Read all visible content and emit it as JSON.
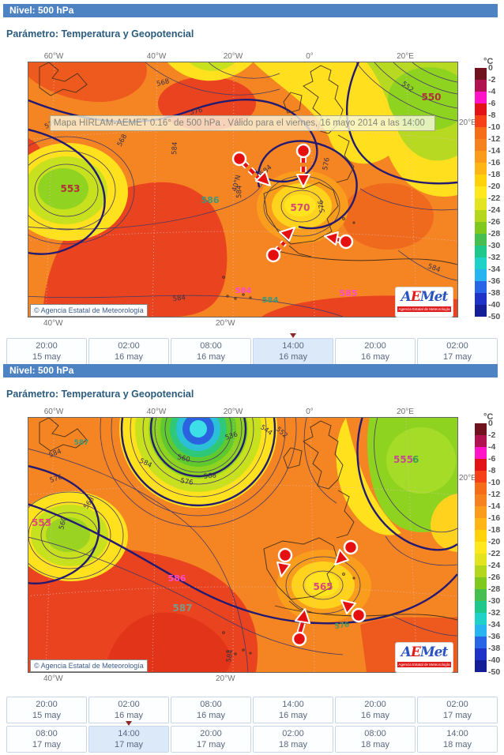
{
  "colorbar": {
    "title": "°C",
    "ticks": [
      "0",
      "-2",
      "-4",
      "-6",
      "-8",
      "-10",
      "-12",
      "-14",
      "-16",
      "-18",
      "-20",
      "-22",
      "-24",
      "-26",
      "-28",
      "-30",
      "-32",
      "-34",
      "-36",
      "-38",
      "-40",
      "-50"
    ],
    "colors": [
      "#70131f",
      "#b0134f",
      "#ff14c8",
      "#e31217",
      "#f54018",
      "#f56d18",
      "#f5821e",
      "#fa9b1a",
      "#ffb514",
      "#ffd20a",
      "#ffe81e",
      "#e1e41e",
      "#b4d71e",
      "#7fc81e",
      "#46be50",
      "#1ec88c",
      "#1ed2c8",
      "#28b4f0",
      "#2864e6",
      "#1e32c8",
      "#141e96"
    ]
  },
  "panel1": {
    "header": "Nivel: 500 hPa",
    "param": "Parámetro: Temperatura y Geopotencial",
    "tooltip": "Mapa HIRLAM-AEMET 0.16° de 500 hPa . Válido para el viernes, 16 mayo 2014 a las 14:00",
    "copyright": "© Agencia Estatal de Meteorología",
    "logo": {
      "a": "A",
      "e": "E",
      "met": "Met",
      "sub": "Agencia Estatal de Meteorología"
    },
    "axis": {
      "top": [
        "60°W",
        "40°W",
        "20°W",
        "0°",
        "20°E"
      ],
      "bottom": [
        "40°W",
        "20°W"
      ],
      "right": "20°E"
    },
    "map_labels": {
      "low_west": "553",
      "low_north": "550",
      "low_center": "570",
      "high_center": "586",
      "high_east": "585",
      "mag_s": "584",
      "teal_s": "584",
      "lat": "40°N",
      "c552": "552",
      "c568a": "568",
      "c568b": "568",
      "c576a": "576",
      "c576b": "576",
      "c576c": "576",
      "c576d": "576",
      "c584a": "584",
      "c584b": "584",
      "c584c": "584",
      "c584d": "584",
      "c584e": "584"
    },
    "timebar": {
      "rows": [
        [
          {
            "time": "20:00",
            "date": "15 may"
          },
          {
            "time": "02:00",
            "date": "16 may"
          },
          {
            "time": "08:00",
            "date": "16 may"
          },
          {
            "time": "14:00",
            "date": "16 may"
          },
          {
            "time": "20:00",
            "date": "16 may"
          },
          {
            "time": "02:00",
            "date": "17 may"
          }
        ]
      ]
    }
  },
  "panel2": {
    "header": "Nivel: 500 hPa",
    "param": "Parámetro: Temperatura y Geopotencial",
    "copyright": "© Agencia Estatal de Meteorología",
    "logo": {
      "a": "A",
      "e": "E",
      "met": "Met",
      "sub": "Agencia Estatal de Meteorología"
    },
    "axis": {
      "top": [
        "60°W",
        "40°W",
        "20°W",
        "0°",
        "20°E"
      ],
      "bottom": [
        "40°W",
        "20°W"
      ],
      "right": "20°E"
    },
    "map_labels": {
      "low_west": "553",
      "low_north": "555",
      "low_north2": "6",
      "low_center": "565",
      "high_mag": "586",
      "high_teal": "587",
      "high_nw": "587",
      "teal576": "576",
      "c536": "536",
      "c544": "544",
      "c552": "552",
      "c560a": "560",
      "c568a": "568",
      "c576a": "576",
      "c584a": "584",
      "c576b": "576",
      "c568b": "568",
      "c560b": "560",
      "c584b": "584",
      "c584c": "584"
    },
    "timebar": {
      "rows": [
        [
          {
            "time": "20:00",
            "date": "15 may"
          },
          {
            "time": "02:00",
            "date": "16 may"
          },
          {
            "time": "08:00",
            "date": "16 may"
          },
          {
            "time": "14:00",
            "date": "16 may"
          },
          {
            "time": "20:00",
            "date": "16 may"
          },
          {
            "time": "02:00",
            "date": "17 may"
          }
        ],
        [
          {
            "time": "08:00",
            "date": "17 may"
          },
          {
            "time": "14:00",
            "date": "17 may"
          },
          {
            "time": "20:00",
            "date": "17 may"
          },
          {
            "time": "02:00",
            "date": "18 may"
          },
          {
            "time": "08:00",
            "date": "18 may"
          },
          {
            "time": "14:00",
            "date": "18 may"
          }
        ]
      ]
    }
  }
}
